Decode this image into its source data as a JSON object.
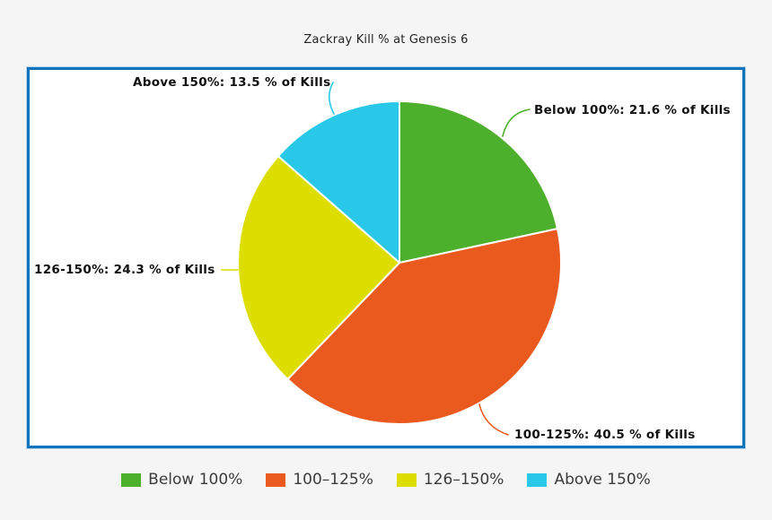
{
  "title": "Zackray Kill % at Genesis 6",
  "chart_data": {
    "type": "pie",
    "title": "Zackray Kill % at Genesis 6",
    "categories": [
      "Below 100%",
      "100-125%",
      "126-150%",
      "Above 150%"
    ],
    "values": [
      21.6,
      40.5,
      24.3,
      13.5
    ],
    "unit": "% of Kills",
    "colors": [
      "#4cb02c",
      "#ea5a1e",
      "#dddd00",
      "#29c8e8"
    ],
    "start_angle_deg": 0,
    "direction": "clockwise",
    "legend_position": "bottom",
    "slice_labels": [
      "Below 100%: 21.6 % of Kills",
      "100-125%: 40.5 % of Kills",
      "126-150%: 24.3 % of Kills",
      "Above 150%: 13.5 % of Kills"
    ]
  },
  "callouts": {
    "above150": {
      "text": "Above 150%: 13.5 % of Kills"
    },
    "below100": {
      "text": "Below 100%: 21.6 % of Kills"
    },
    "range126150": {
      "text": "126-150%: 24.3 % of Kills"
    },
    "range100125": {
      "text": "100-125%: 40.5 % of Kills"
    }
  },
  "legend": {
    "items": [
      {
        "label": "Below 100%",
        "color": "#4cb02c"
      },
      {
        "label": "100–125%",
        "color": "#ea5a1e"
      },
      {
        "label": "126–150%",
        "color": "#dddd00"
      },
      {
        "label": "Above 150%",
        "color": "#29c8e8"
      }
    ]
  },
  "frame_color": "#1273bd"
}
